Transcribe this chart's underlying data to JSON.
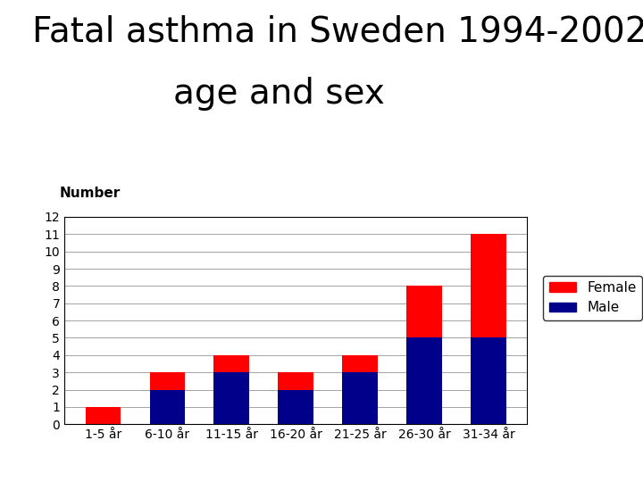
{
  "title_line1": "Fatal asthma in Sweden 1994-2002",
  "title_line2": "age and sex",
  "categories": [
    "1-5 år",
    "6-10 år",
    "11-15 år",
    "16-20 år",
    "21-25 år",
    "26-30 år",
    "31-34 år"
  ],
  "male_values": [
    0,
    2,
    3,
    2,
    3,
    5,
    5
  ],
  "female_values": [
    1,
    1,
    1,
    1,
    1,
    3,
    6
  ],
  "male_color": "#00008B",
  "female_color": "#FF0000",
  "ylabel": "Number",
  "ylim": [
    0,
    12
  ],
  "yticks": [
    0,
    1,
    2,
    3,
    4,
    5,
    6,
    7,
    8,
    9,
    10,
    11,
    12
  ],
  "title_fontsize": 28,
  "ylabel_fontsize": 11,
  "xlabel_fontsize": 10,
  "tick_fontsize": 10,
  "legend_fontsize": 11,
  "background_color": "#ffffff",
  "bar_width": 0.55
}
